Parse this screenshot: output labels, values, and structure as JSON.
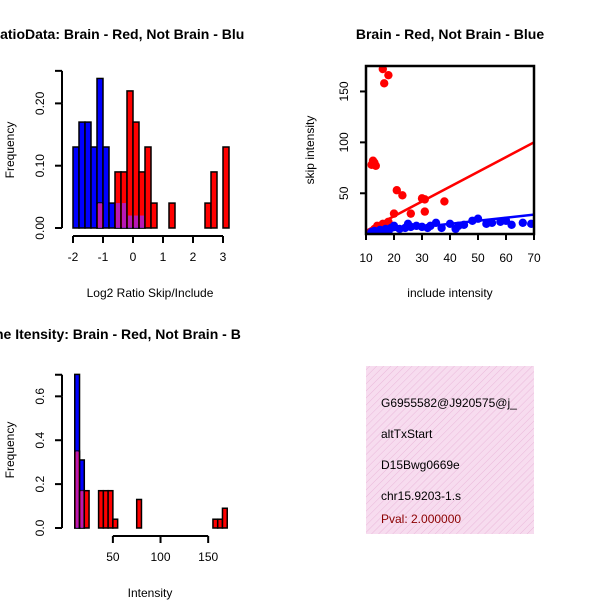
{
  "colors": {
    "red": "#ff0000",
    "blue": "#0000ff",
    "purple": "#a020f0",
    "stroke": "#000000",
    "panel_bg": "#f7dcef",
    "pval": "#8b0000"
  },
  "chart_data": [
    {
      "type": "bar",
      "title": "RatioData: Brain - Red, Not Brain - Blu",
      "xlabel": "Log2 Ratio Skip/Include",
      "ylabel": "Frequency",
      "xlim": [
        -2.1,
        3.3
      ],
      "ylim": [
        0,
        0.26
      ],
      "xticks": [
        "-2",
        "-1",
        "0",
        "1",
        "2",
        "3"
      ],
      "xtick_values": [
        -2,
        -1,
        0,
        1,
        2,
        3
      ],
      "yticks": [
        "0.00",
        "0.10",
        "0.20"
      ],
      "ytick_values": [
        0,
        0.1,
        0.2
      ],
      "series": [
        {
          "name": "Not Brain",
          "color": "blue",
          "bars": [
            [
              -2.0,
              -1.8,
              0.13
            ],
            [
              -1.8,
              -1.6,
              0.17
            ],
            [
              -1.6,
              -1.4,
              0.17
            ],
            [
              -1.4,
              -1.2,
              0.13
            ],
            [
              -1.2,
              -1.0,
              0.24
            ],
            [
              -1.0,
              -0.8,
              0.13
            ],
            [
              -0.8,
              -0.6,
              0.04
            ],
            [
              -0.6,
              -0.4,
              0.04
            ],
            [
              -0.4,
              -0.2,
              0.04
            ],
            [
              -0.2,
              0.0,
              0.02
            ],
            [
              0.0,
              0.2,
              0.02
            ],
            [
              0.2,
              0.4,
              0.02
            ]
          ]
        },
        {
          "name": "Brain",
          "color": "red",
          "bars": [
            [
              -1.2,
              -1.0,
              0.04
            ],
            [
              -0.6,
              -0.4,
              0.09
            ],
            [
              -0.4,
              -0.2,
              0.09
            ],
            [
              -0.2,
              0.0,
              0.22
            ],
            [
              0.0,
              0.2,
              0.17
            ],
            [
              0.2,
              0.4,
              0.09
            ],
            [
              0.4,
              0.6,
              0.13
            ],
            [
              0.6,
              0.8,
              0.04
            ],
            [
              1.2,
              1.4,
              0.04
            ],
            [
              2.4,
              2.6,
              0.04
            ],
            [
              2.6,
              2.8,
              0.09
            ],
            [
              3.0,
              3.2,
              0.13
            ]
          ]
        }
      ]
    },
    {
      "type": "scatter",
      "title": "Brain - Red, Not Brain - Blue",
      "xlabel": "include intensity",
      "ylabel": "skip intensity",
      "xlim": [
        10,
        70
      ],
      "ylim": [
        10,
        175
      ],
      "xticks": [
        "10",
        "20",
        "30",
        "40",
        "50",
        "60",
        "70"
      ],
      "xtick_values": [
        10,
        20,
        30,
        40,
        50,
        60,
        70
      ],
      "yticks": [
        "50",
        "100",
        "150"
      ],
      "ytick_values": [
        50,
        100,
        150
      ],
      "series": [
        {
          "name": "Brain",
          "color": "red",
          "points": [
            [
              12,
              78
            ],
            [
              12.5,
              82
            ],
            [
              13,
              80
            ],
            [
              13.5,
              77
            ],
            [
              16,
              172
            ],
            [
              16.5,
              158
            ],
            [
              18,
              166
            ],
            [
              13,
              15
            ],
            [
              14,
              18
            ],
            [
              16,
              20
            ],
            [
              18,
              22
            ],
            [
              20,
              30
            ],
            [
              21,
              53
            ],
            [
              23,
              48
            ],
            [
              26,
              30
            ],
            [
              30,
              45
            ],
            [
              31,
              44
            ],
            [
              31,
              32
            ],
            [
              38,
              42
            ]
          ],
          "fit": [
            [
              10,
              13
            ],
            [
              70,
              100
            ]
          ]
        },
        {
          "name": "Not Brain",
          "color": "blue",
          "points": [
            [
              12,
              12
            ],
            [
              13,
              13
            ],
            [
              14,
              12
            ],
            [
              15,
              14
            ],
            [
              16,
              13
            ],
            [
              17,
              15
            ],
            [
              18,
              12
            ],
            [
              19,
              16
            ],
            [
              20,
              18
            ],
            [
              22,
              15
            ],
            [
              24,
              16
            ],
            [
              25,
              20
            ],
            [
              26,
              17
            ],
            [
              28,
              18
            ],
            [
              30,
              17
            ],
            [
              32,
              16
            ],
            [
              33,
              18
            ],
            [
              35,
              21
            ],
            [
              37,
              16
            ],
            [
              40,
              20
            ],
            [
              42,
              15
            ],
            [
              43,
              18
            ],
            [
              45,
              19
            ],
            [
              48,
              23
            ],
            [
              50,
              25
            ],
            [
              53,
              20
            ],
            [
              55,
              21
            ],
            [
              58,
              22
            ],
            [
              60,
              23
            ],
            [
              62,
              19
            ],
            [
              66,
              21
            ],
            [
              69,
              20
            ]
          ],
          "fit": [
            [
              10,
              11
            ],
            [
              70,
              29
            ]
          ]
        }
      ]
    },
    {
      "type": "bar",
      "title": "ne Itensity: Brain - Red, Not Brain - B",
      "xlabel": "Intensity",
      "ylabel": "Frequency",
      "xlim": [
        5,
        175
      ],
      "ylim": [
        0,
        0.72
      ],
      "xticks": [
        "50",
        "100",
        "150"
      ],
      "xtick_values": [
        50,
        100,
        150
      ],
      "yticks": [
        "0.0",
        "0.2",
        "0.4",
        "0.6"
      ],
      "ytick_values": [
        0,
        0.2,
        0.4,
        0.6
      ],
      "series": [
        {
          "name": "Not Brain",
          "color": "blue",
          "bars": [
            [
              10,
              15,
              0.7
            ],
            [
              15,
              20,
              0.31
            ]
          ]
        },
        {
          "name": "Brain",
          "color": "red",
          "bars": [
            [
              10,
              15,
              0.35
            ],
            [
              15,
              20,
              0.17
            ],
            [
              20,
              25,
              0.17
            ],
            [
              35,
              40,
              0.17
            ],
            [
              40,
              45,
              0.17
            ],
            [
              45,
              50,
              0.17
            ],
            [
              50,
              55,
              0.04
            ],
            [
              75,
              80,
              0.13
            ],
            [
              155,
              160,
              0.04
            ],
            [
              160,
              165,
              0.04
            ],
            [
              165,
              170,
              0.09
            ]
          ]
        }
      ]
    }
  ],
  "info_panel": {
    "line1": "G6955582@J920575@j_",
    "line2": "altTxStart",
    "line3": "D15Bwg0669e",
    "line4": "chr15.9203-1.s",
    "pval": "Pval: 2.000000"
  }
}
